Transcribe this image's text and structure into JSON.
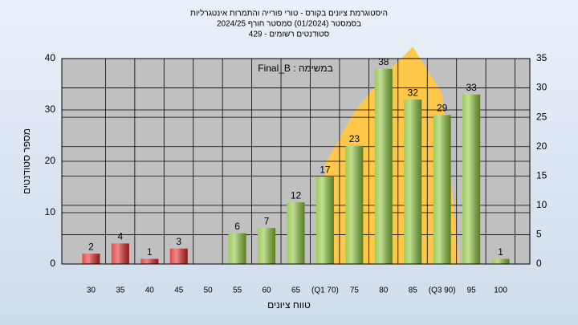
{
  "chart_data": {
    "type": "bar",
    "title": [
      "היסטוגרמת ציונים בקורס - טורי פורייה והתמרות אינטגרליות",
      "בסמסטר  (01/2024)  סמסטר חורף 2024/25",
      "סטודנטים רשומים - 429"
    ],
    "annotation": "Final_B : במשימה",
    "ylabel": "מספר סטודנטים",
    "xlabel": "טווח ציונים",
    "categories": [
      "30",
      "35",
      "40",
      "45",
      "50",
      "55",
      "60",
      "65",
      "(Q1 70)",
      "75",
      "80",
      "85",
      "(Q3 90)",
      "95",
      "100"
    ],
    "x": [
      30,
      35,
      40,
      45,
      50,
      55,
      60,
      65,
      70,
      75,
      80,
      85,
      90,
      95,
      100
    ],
    "series": [
      {
        "values": [
          2,
          4,
          1,
          3,
          null,
          6,
          7,
          12,
          17,
          23,
          38,
          32,
          29,
          33,
          1
        ],
        "colors": [
          "#e02828",
          "#e02828",
          "#e02828",
          "#e02828",
          null,
          "#8cc43c",
          "#8cc43c",
          "#8cc43c",
          "#8cc43c",
          "#8cc43c",
          "#8cc43c",
          "#8cc43c",
          "#8cc43c",
          "#8cc43c",
          "#8cc43c"
        ]
      },
      {
        "type": "area",
        "axis": "y2",
        "color": "#ffc84a",
        "x": [
          70,
          75,
          80,
          85,
          90,
          93
        ],
        "values": [
          17,
          26,
          32,
          37,
          29,
          0
        ]
      }
    ],
    "ylim": [
      0,
      40
    ],
    "yticks": [
      0,
      10,
      20,
      30,
      40
    ],
    "y2lim": [
      0,
      35
    ],
    "y2ticks": [
      0,
      5,
      10,
      15,
      20,
      25,
      30,
      35
    ],
    "xlim": [
      25,
      105
    ],
    "grid": true
  }
}
